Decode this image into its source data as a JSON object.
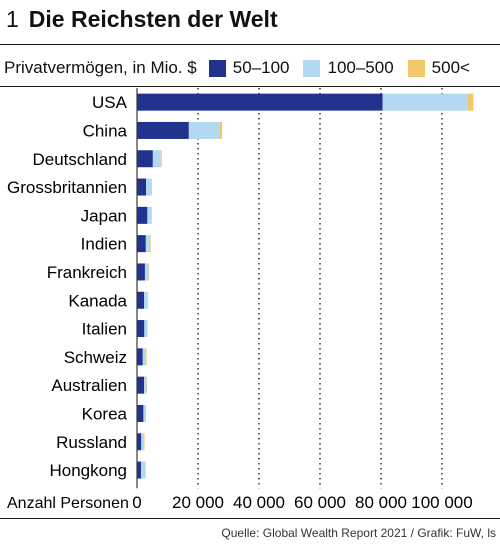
{
  "header": {
    "figure_number": "1",
    "title": "Die Reichsten der Welt",
    "subtitle": "Privatvermögen, in Mio. $"
  },
  "footer": {
    "source": "Quelle: Global Wealth Report 2021 / Grafik: FuW, ls"
  },
  "colors": {
    "series_50_100": "#22338f",
    "series_100_500": "#b3d9f2",
    "series_500_plus": "#f2c76b",
    "grid": "#222222"
  },
  "chart_data": {
    "type": "bar",
    "orientation": "horizontal",
    "stacked": true,
    "xlabel": "Anzahl Personen",
    "xlim": [
      0,
      120000
    ],
    "xticks": [
      0,
      20000,
      40000,
      60000,
      80000,
      100000
    ],
    "xtick_labels": [
      "0",
      "20 000",
      "40 000",
      "60 000",
      "80 000",
      "100 000"
    ],
    "grid": "vertical dotted",
    "legend_position": "top",
    "categories": [
      "USA",
      "China",
      "Deutschland",
      "Grossbritannien",
      "Japan",
      "Indien",
      "Frankreich",
      "Kanada",
      "Italien",
      "Schweiz",
      "Australien",
      "Korea",
      "Russland",
      "Hongkong"
    ],
    "series": [
      {
        "name": "50–100",
        "values": [
          80500,
          17000,
          5200,
          3000,
          3400,
          2900,
          2600,
          2300,
          2400,
          1900,
          2300,
          2100,
          1400,
          1300
        ]
      },
      {
        "name": "100–500",
        "values": [
          28000,
          10000,
          2600,
          1700,
          1300,
          1400,
          1200,
          1100,
          900,
          1100,
          800,
          700,
          900,
          1400
        ]
      },
      {
        "name": "500<",
        "values": [
          1800,
          900,
          300,
          200,
          100,
          200,
          150,
          100,
          100,
          200,
          100,
          50,
          100,
          100
        ]
      }
    ]
  }
}
